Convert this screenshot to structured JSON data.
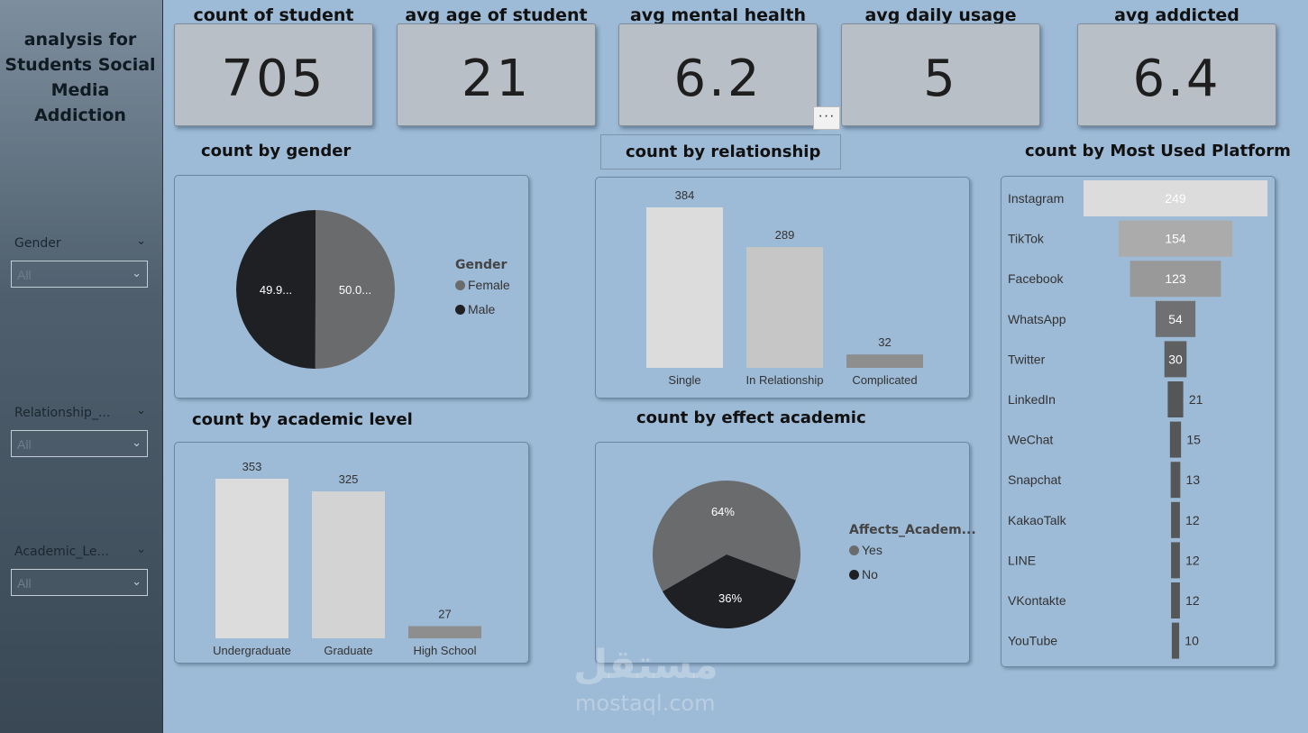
{
  "sidebar": {
    "title": "analysis for Students Social Media Addiction",
    "slicers": [
      {
        "label": "Gender",
        "value": "All"
      },
      {
        "label": "Relationship_...",
        "value": "All"
      },
      {
        "label": "Academic_Le...",
        "value": "All"
      }
    ]
  },
  "kpis": [
    {
      "title": "count of student",
      "value": "705"
    },
    {
      "title": "avg age of student",
      "value": "21"
    },
    {
      "title": "avg mental health",
      "value": "6.2"
    },
    {
      "title": "avg daily usage",
      "value": "5"
    },
    {
      "title": "avg addicted",
      "value": "6.4"
    }
  ],
  "more_options": "···",
  "sections": {
    "gender": "count by gender",
    "relationship": "count by relationship",
    "platform": "count by Most Used Platform",
    "academic": "count by academic level",
    "effect": "count by effect academic"
  },
  "colors": {
    "dark": "#1f2023",
    "mid": "#6a6b6d",
    "light": "#dcdcdc"
  },
  "watermark": {
    "arabic": "مستقل",
    "latin": "mostaql.com"
  },
  "chart_data": [
    {
      "id": "gender",
      "type": "pie",
      "title": "count by gender",
      "legend_title": "Gender",
      "slices": [
        {
          "name": "Female",
          "label": "50.0...",
          "value": 50.0,
          "color": "#6a6b6d"
        },
        {
          "name": "Male",
          "label": "49.9...",
          "value": 49.9,
          "color": "#1f2023"
        }
      ]
    },
    {
      "id": "relationship",
      "type": "bar",
      "title": "count by relationship",
      "categories": [
        "Single",
        "In Relationship",
        "Complicated"
      ],
      "values": [
        384,
        289,
        32
      ],
      "colors": [
        "#dcdcdc",
        "#c6c6c6",
        "#8e8e8e"
      ]
    },
    {
      "id": "academic",
      "type": "bar",
      "title": "count by academic level",
      "categories": [
        "Undergraduate",
        "Graduate",
        "High School"
      ],
      "values": [
        353,
        325,
        27
      ],
      "colors": [
        "#dcdcdc",
        "#d3d3d3",
        "#8e8e8e"
      ]
    },
    {
      "id": "effect",
      "type": "pie",
      "title": "count by effect academic",
      "legend_title": "Affects_Academ...",
      "slices": [
        {
          "name": "Yes",
          "label": "64%",
          "value": 64,
          "color": "#6a6b6d"
        },
        {
          "name": "No",
          "label": "36%",
          "value": 36,
          "color": "#1f2023"
        }
      ]
    },
    {
      "id": "platform",
      "type": "bar",
      "orientation": "funnel",
      "title": "count by Most Used Platform",
      "categories": [
        "Instagram",
        "TikTok",
        "Facebook",
        "WhatsApp",
        "Twitter",
        "LinkedIn",
        "WeChat",
        "Snapchat",
        "KakaoTalk",
        "LINE",
        "VKontakte",
        "YouTube"
      ],
      "values": [
        249,
        154,
        123,
        54,
        30,
        21,
        15,
        13,
        12,
        12,
        12,
        10
      ],
      "colors": [
        "#dcdcdc",
        "#ababab",
        "#999999",
        "#6f7072",
        "#5e5f61",
        "#555658",
        "#555658",
        "#555658",
        "#555658",
        "#555658",
        "#555658",
        "#555658"
      ]
    }
  ]
}
